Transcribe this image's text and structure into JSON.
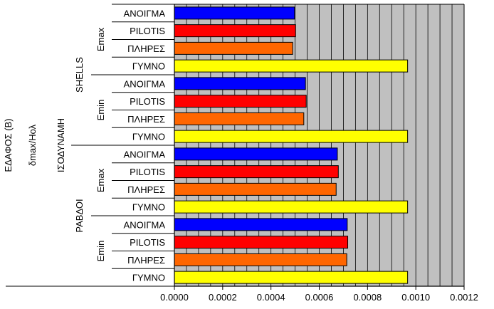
{
  "chart_data": {
    "type": "bar",
    "orientation": "horizontal",
    "title": "",
    "xlabel": "",
    "ylabel": "",
    "xlim": [
      0,
      0.0012
    ],
    "x_ticks": [
      "0.0000",
      "0.0002",
      "0.0004",
      "0.0006",
      "0.0008",
      "0.0010",
      "0.0012"
    ],
    "grid": true,
    "plot_background": "#c0c0c0",
    "category_colors": {
      "ΑΝΟΙΓΜΑ": "#0000ff",
      "PILOTIS": "#ff0000",
      "ΠΛΗΡΕΣ": "#ff6600",
      "ΓΥΜΝΟ": "#ffff00"
    },
    "group_labels": {
      "level1": "ΕΔΑΦΟΣ (Β)",
      "level2": "δmax/Hολ",
      "level3": "ΙΣΟΔΥΝΑΜΗ",
      "level4": [
        "SHELLS",
        "ΡΑΒΔΟΙ"
      ],
      "level5": [
        "Emax",
        "Emin",
        "Emax",
        "Emin"
      ]
    },
    "bars": [
      {
        "label": "ΑΝΟΙΓΜΑ",
        "value": 0.000498
      },
      {
        "label": "PILOTIS",
        "value": 0.000502
      },
      {
        "label": "ΠΛΗΡΕΣ",
        "value": 0.00049
      },
      {
        "label": "ΓΥΜΝΟ",
        "value": 0.000966
      },
      {
        "label": "ΑΝΟΙΓΜΑ",
        "value": 0.000543
      },
      {
        "label": "PILOTIS",
        "value": 0.000546
      },
      {
        "label": "ΠΛΗΡΕΣ",
        "value": 0.000536
      },
      {
        "label": "ΓΥΜΝΟ",
        "value": 0.000966
      },
      {
        "label": "ΑΝΟΙΓΜΑ",
        "value": 0.000675
      },
      {
        "label": "PILOTIS",
        "value": 0.000679
      },
      {
        "label": "ΠΛΗΡΕΣ",
        "value": 0.00067
      },
      {
        "label": "ΓΥΜΝΟ",
        "value": 0.000966
      },
      {
        "label": "ΑΝΟΙΓΜΑ",
        "value": 0.000716
      },
      {
        "label": "PILOTIS",
        "value": 0.000718
      },
      {
        "label": "ΠΛΗΡΕΣ",
        "value": 0.000714
      },
      {
        "label": "ΓΥΜΝΟ",
        "value": 0.000966
      }
    ]
  }
}
